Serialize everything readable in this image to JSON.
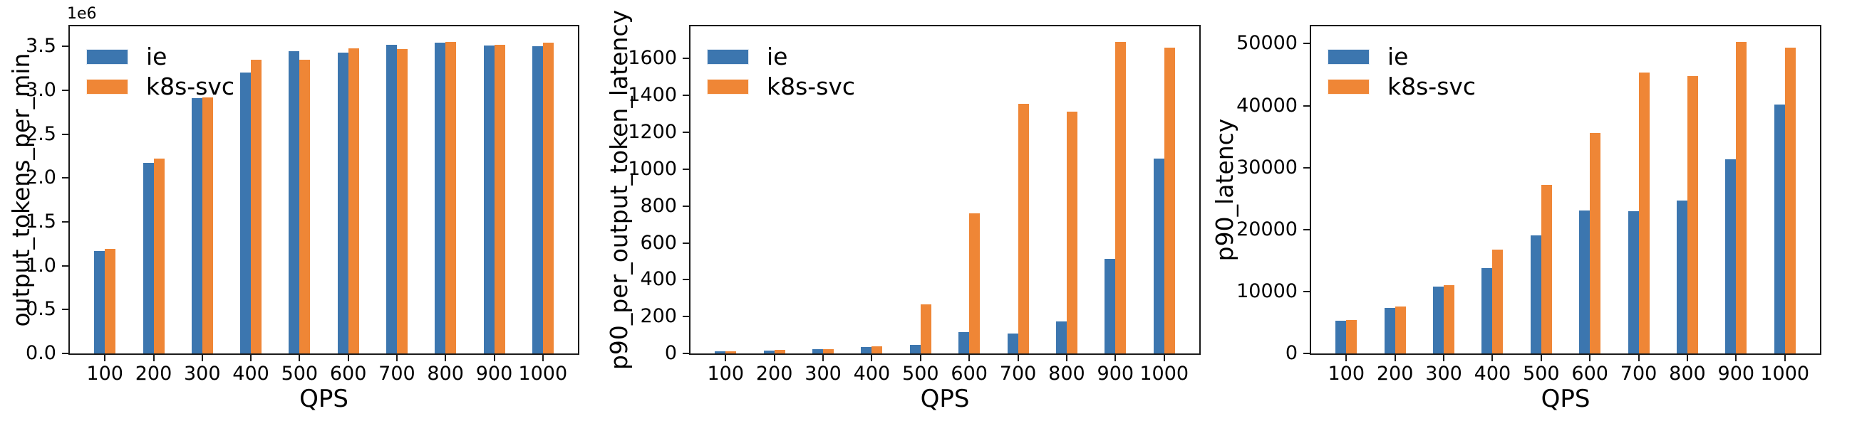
{
  "figure": {
    "background": "#ffffff",
    "series_colors": {
      "ie": "#3c76af",
      "k8s-svc": "#ef8636"
    },
    "spine_color": "#1a1a1a"
  },
  "legend": {
    "items": [
      {
        "label": "ie",
        "color": "#3c76af"
      },
      {
        "label": "k8s-svc",
        "color": "#ef8636"
      }
    ],
    "position": "upper left"
  },
  "chart_data": [
    {
      "type": "bar",
      "title": "",
      "xlabel": "QPS",
      "ylabel": "output_tokens_per_min",
      "offset_text": "1e6",
      "value_scale": "values are in units of 1e6",
      "categories": [
        "100",
        "200",
        "300",
        "400",
        "500",
        "600",
        "700",
        "800",
        "900",
        "1000"
      ],
      "ylim": [
        0,
        3.73
      ],
      "yticks": [
        0,
        0.5,
        1.0,
        1.5,
        2.0,
        2.5,
        3.0,
        3.5
      ],
      "ytick_labels": [
        "0.0",
        "0.5",
        "1.0",
        "1.5",
        "2.0",
        "2.5",
        "3.0",
        "3.5"
      ],
      "grid": false,
      "legend_position": "upper left",
      "series": [
        {
          "name": "ie",
          "color": "#3c76af",
          "values": [
            1.17,
            2.17,
            2.91,
            3.2,
            3.45,
            3.43,
            3.52,
            3.54,
            3.51,
            3.5
          ]
        },
        {
          "name": "k8s-svc",
          "color": "#ef8636",
          "values": [
            1.19,
            2.22,
            2.92,
            3.35,
            3.35,
            3.48,
            3.47,
            3.55,
            3.52,
            3.54
          ]
        }
      ]
    },
    {
      "type": "bar",
      "title": "",
      "xlabel": "QPS",
      "ylabel": "p90_per_output_token_latency",
      "offset_text": "",
      "categories": [
        "100",
        "200",
        "300",
        "400",
        "500",
        "600",
        "700",
        "800",
        "900",
        "1000"
      ],
      "ylim": [
        0,
        1775
      ],
      "yticks": [
        0,
        200,
        400,
        600,
        800,
        1000,
        1200,
        1400,
        1600
      ],
      "ytick_labels": [
        "0",
        "200",
        "400",
        "600",
        "800",
        "1000",
        "1200",
        "1400",
        "1600"
      ],
      "grid": false,
      "legend_position": "upper left",
      "series": [
        {
          "name": "ie",
          "color": "#3c76af",
          "values": [
            10,
            17,
            25,
            36,
            48,
            115,
            107,
            175,
            512,
            1057
          ]
        },
        {
          "name": "k8s-svc",
          "color": "#ef8636",
          "values": [
            11,
            18,
            25,
            38,
            268,
            760,
            1355,
            1312,
            1690,
            1660
          ]
        }
      ]
    },
    {
      "type": "bar",
      "title": "",
      "xlabel": "QPS",
      "ylabel": "p90_latency",
      "offset_text": "",
      "categories": [
        "100",
        "200",
        "300",
        "400",
        "500",
        "600",
        "700",
        "800",
        "900",
        "1000"
      ],
      "ylim": [
        0,
        52800
      ],
      "yticks": [
        0,
        10000,
        20000,
        30000,
        40000,
        50000
      ],
      "ytick_labels": [
        "0",
        "10000",
        "20000",
        "30000",
        "40000",
        "50000"
      ],
      "grid": false,
      "legend_position": "upper left",
      "series": [
        {
          "name": "ie",
          "color": "#3c76af",
          "values": [
            5260,
            7300,
            10830,
            13830,
            19060,
            23100,
            22900,
            24700,
            31300,
            40200
          ]
        },
        {
          "name": "k8s-svc",
          "color": "#ef8636",
          "values": [
            5450,
            7540,
            11060,
            16740,
            27200,
            35600,
            45300,
            44800,
            50300,
            49400
          ]
        }
      ]
    }
  ]
}
